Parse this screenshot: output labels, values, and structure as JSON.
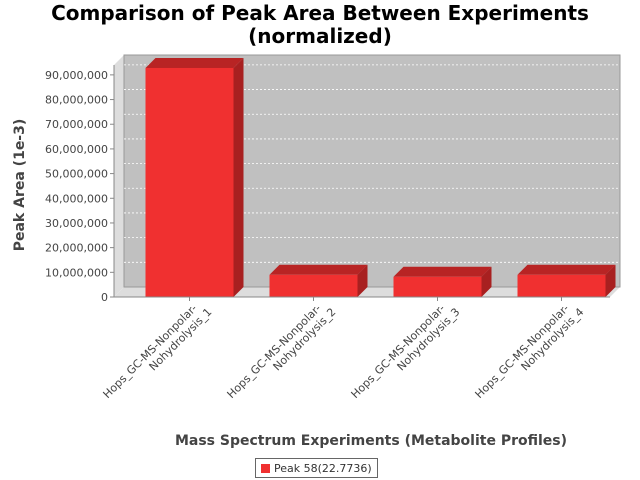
{
  "chart_data": {
    "type": "bar",
    "title_lines": [
      "Comparison of Peak Area Between Experiments",
      "(normalized)"
    ],
    "xlabel": "Mass Spectrum Experiments (Metabolite Profiles)",
    "ylabel": "Peak Area (1e-3)",
    "categories": [
      [
        "Hops_GC-MS-Nonpolar-",
        "Nohydrolysis_1"
      ],
      [
        "Hops_GC-MS-Nonpolar-",
        "Nohydrolysis_2"
      ],
      [
        "Hops_GC-MS-Nonpolar-",
        "Nohydrolysis_3"
      ],
      [
        "Hops_GC-MS-Nonpolar-",
        "Nohydrolysis_4"
      ]
    ],
    "series": [
      {
        "name": "Peak 58(22.7736)",
        "color": "#f03030",
        "values": [
          92800000,
          9000000,
          8200000,
          9000000
        ]
      }
    ],
    "ylim": [
      0,
      94000000
    ],
    "yticks": [
      0,
      10000000,
      20000000,
      30000000,
      40000000,
      50000000,
      60000000,
      70000000,
      80000000,
      90000000
    ],
    "ytick_labels": [
      "0",
      "10,000,000",
      "20,000,000",
      "30,000,000",
      "40,000,000",
      "50,000,000",
      "60,000,000",
      "70,000,000",
      "80,000,000",
      "90,000,000"
    ],
    "grid": true,
    "legend_position": "bottom",
    "style": "3d"
  }
}
